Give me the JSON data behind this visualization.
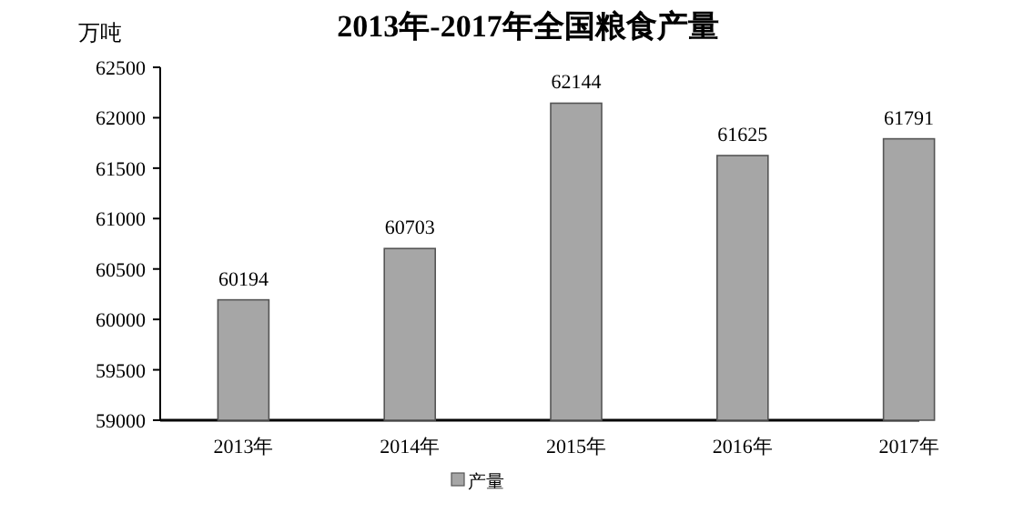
{
  "chart_data": {
    "type": "bar",
    "title": "2013年-2017年全国粮食产量",
    "ylabel": "万吨",
    "categories": [
      "2013年",
      "2014年",
      "2015年",
      "2016年",
      "2017年"
    ],
    "series": [
      {
        "name": "产量",
        "color": "#a6a6a6",
        "values": [
          60194,
          60703,
          62144,
          61625,
          61791
        ]
      }
    ],
    "ylim": [
      59000,
      62500
    ],
    "yticks": [
      59000,
      59500,
      60000,
      60500,
      61000,
      61500,
      62000,
      62500
    ],
    "data_labels": true,
    "legend": "bottom",
    "grid": false
  }
}
